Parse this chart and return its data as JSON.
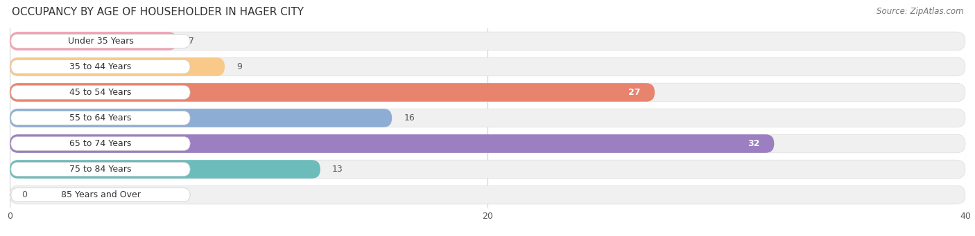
{
  "title": "OCCUPANCY BY AGE OF HOUSEHOLDER IN HAGER CITY",
  "source": "Source: ZipAtlas.com",
  "categories": [
    "Under 35 Years",
    "35 to 44 Years",
    "45 to 54 Years",
    "55 to 64 Years",
    "65 to 74 Years",
    "75 to 84 Years",
    "85 Years and Over"
  ],
  "values": [
    7,
    9,
    27,
    16,
    32,
    13,
    0
  ],
  "bar_colors": [
    "#f4a0b5",
    "#f9c98a",
    "#e8836e",
    "#8eadd4",
    "#9b7fc0",
    "#6bbcbb",
    "#c5c0e0"
  ],
  "xlim": [
    0,
    40
  ],
  "xticks": [
    0,
    20,
    40
  ],
  "bg_color": "#ffffff",
  "row_bg_color": "#f0f0f0",
  "title_fontsize": 11,
  "label_fontsize": 9,
  "value_fontsize": 9,
  "source_fontsize": 8.5
}
